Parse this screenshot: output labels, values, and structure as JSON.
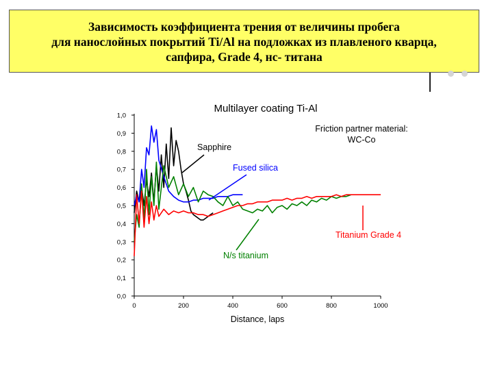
{
  "banner": {
    "line1": "Зависимость коэффициента трения от величины пробега",
    "line2": "для нанослойных покрытий Ti/Al на подложках из плавленого кварца,",
    "line3": "сапфира, Grade 4, нс- титана"
  },
  "chart_data": {
    "type": "line",
    "title": "Multilayer coating Ti-Al",
    "xlabel": "Distance, laps",
    "ylabel": "",
    "xlim": [
      0,
      1000
    ],
    "ylim": [
      0,
      1.0
    ],
    "x_ticks": [
      0,
      200,
      400,
      600,
      800,
      1000
    ],
    "y_ticks": [
      0.0,
      0.1,
      0.2,
      0.3,
      0.4,
      0.5,
      0.6,
      0.7,
      0.8,
      0.9,
      1.0
    ],
    "x_tick_labels": [
      "0",
      "200",
      "400",
      "600",
      "800",
      "1000"
    ],
    "y_tick_labels": [
      "0,0",
      "0,1",
      "0,2",
      "0,3",
      "0,4",
      "0,5",
      "0,6",
      "0,7",
      "0,8",
      "0,9",
      "1,0"
    ],
    "grid": false,
    "series": [
      {
        "name": "Sapphire",
        "color": "#000000",
        "x": [
          0,
          10,
          20,
          30,
          40,
          50,
          60,
          70,
          80,
          90,
          100,
          110,
          120,
          130,
          140,
          150,
          160,
          170,
          180,
          190,
          200,
          210,
          220,
          230,
          240,
          250,
          260,
          270,
          280,
          290,
          300,
          310,
          320
        ],
        "y": [
          0.46,
          0.58,
          0.52,
          0.6,
          0.5,
          0.64,
          0.55,
          0.68,
          0.52,
          0.72,
          0.58,
          0.78,
          0.6,
          0.84,
          0.65,
          0.93,
          0.72,
          0.86,
          0.8,
          0.7,
          0.62,
          0.58,
          0.53,
          0.47,
          0.45,
          0.44,
          0.43,
          0.42,
          0.42,
          0.43,
          0.44,
          0.45,
          0.46
        ]
      },
      {
        "name": "Fused silica",
        "color": "#0000ff",
        "x": [
          0,
          10,
          20,
          30,
          40,
          50,
          60,
          70,
          80,
          90,
          100,
          120,
          140,
          160,
          180,
          200,
          220,
          240,
          260,
          280,
          300,
          320,
          340,
          360,
          380,
          400,
          420,
          440
        ],
        "y": [
          0.5,
          0.56,
          0.52,
          0.7,
          0.6,
          0.82,
          0.78,
          0.94,
          0.85,
          0.92,
          0.75,
          0.66,
          0.58,
          0.55,
          0.53,
          0.52,
          0.52,
          0.53,
          0.53,
          0.54,
          0.54,
          0.54,
          0.55,
          0.55,
          0.55,
          0.56,
          0.56,
          0.56
        ]
      },
      {
        "name": "N/s titanium",
        "color": "#008000",
        "x": [
          0,
          10,
          20,
          30,
          40,
          50,
          60,
          70,
          80,
          90,
          100,
          120,
          140,
          160,
          180,
          200,
          220,
          240,
          260,
          280,
          300,
          320,
          340,
          360,
          380,
          400,
          420,
          440,
          460,
          480,
          500,
          520,
          540,
          560,
          580,
          600,
          620,
          640,
          660,
          680,
          700,
          720,
          740,
          760,
          780,
          800,
          820,
          840,
          860,
          880
        ],
        "y": [
          0.3,
          0.45,
          0.38,
          0.62,
          0.42,
          0.7,
          0.45,
          0.66,
          0.5,
          0.74,
          0.48,
          0.72,
          0.6,
          0.66,
          0.56,
          0.62,
          0.55,
          0.6,
          0.52,
          0.58,
          0.56,
          0.55,
          0.52,
          0.5,
          0.55,
          0.5,
          0.52,
          0.48,
          0.47,
          0.46,
          0.48,
          0.47,
          0.5,
          0.46,
          0.49,
          0.5,
          0.48,
          0.51,
          0.5,
          0.52,
          0.5,
          0.53,
          0.52,
          0.54,
          0.53,
          0.55,
          0.54,
          0.55,
          0.55,
          0.56
        ]
      },
      {
        "name": "Titanium Grade 4",
        "color": "#ff0000",
        "x": [
          0,
          10,
          20,
          30,
          40,
          50,
          60,
          70,
          80,
          90,
          100,
          120,
          140,
          160,
          180,
          200,
          220,
          240,
          260,
          280,
          300,
          320,
          340,
          360,
          380,
          400,
          420,
          440,
          460,
          480,
          500,
          520,
          540,
          560,
          580,
          600,
          620,
          640,
          660,
          680,
          700,
          720,
          740,
          760,
          780,
          800,
          820,
          840,
          860,
          880,
          900,
          920,
          940,
          960,
          980,
          1000
        ],
        "y": [
          0.22,
          0.56,
          0.4,
          0.58,
          0.38,
          0.55,
          0.4,
          0.52,
          0.42,
          0.5,
          0.44,
          0.48,
          0.45,
          0.47,
          0.46,
          0.47,
          0.46,
          0.46,
          0.45,
          0.45,
          0.44,
          0.45,
          0.46,
          0.47,
          0.48,
          0.49,
          0.5,
          0.5,
          0.51,
          0.51,
          0.52,
          0.52,
          0.52,
          0.53,
          0.53,
          0.53,
          0.54,
          0.53,
          0.54,
          0.54,
          0.55,
          0.54,
          0.55,
          0.55,
          0.55,
          0.55,
          0.56,
          0.55,
          0.56,
          0.56,
          0.56,
          0.56,
          0.56,
          0.56,
          0.56,
          0.56
        ]
      }
    ],
    "annotations": [
      {
        "text": "Sapphire",
        "color": "#000000"
      },
      {
        "text": "Fused silica",
        "color": "#0000ff"
      },
      {
        "text": "N/s titanium",
        "color": "#008000"
      },
      {
        "text": "Titanium Grade 4",
        "color": "#ff0000"
      },
      {
        "text": "Friction partner material:",
        "color": "#000000"
      },
      {
        "text": "WC-Co",
        "color": "#000000"
      }
    ]
  }
}
